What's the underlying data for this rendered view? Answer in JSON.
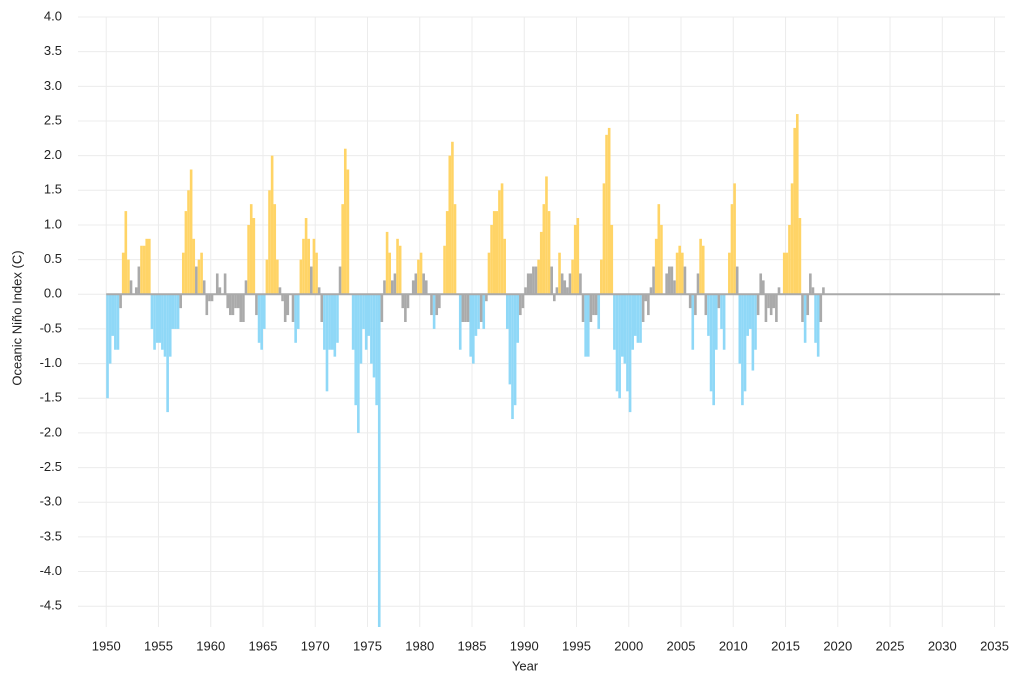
{
  "chart_data": {
    "type": "bar",
    "x_label": "Year",
    "y_label": "Oceanic Niño Index (C)",
    "xlim": [
      1947.3,
      2036
    ],
    "ylim": [
      -4.8,
      4.0
    ],
    "xticks": [
      1950,
      1955,
      1960,
      1965,
      1970,
      1975,
      1980,
      1985,
      1990,
      1995,
      2000,
      2005,
      2010,
      2015,
      2020,
      2025,
      2030,
      2035
    ],
    "yticks": [
      {
        "value": 4,
        "label": "4.0"
      },
      3.5,
      {
        "value": 3,
        "label": "3.0"
      },
      2.5,
      {
        "value": 2,
        "label": "2.0"
      },
      1.5,
      {
        "value": 1,
        "label": "1.0"
      },
      0.5,
      {
        "value": 0,
        "label": "0.0"
      },
      -0.5,
      {
        "value": -1,
        "label": "-1.0"
      },
      -1.5,
      {
        "value": -2,
        "label": "-2.0"
      },
      -2.5,
      {
        "value": -3,
        "label": "-3.0"
      },
      -3.5,
      {
        "value": -4,
        "label": "-4.0"
      },
      -4.5
    ],
    "grid": true,
    "colors": {
      "warm": "#ffd466",
      "cool": "#8fd8f7",
      "neutral": "#aaaaaa",
      "zero_line": "#aaaaaa"
    },
    "color_threshold": 0.5,
    "x": [
      1950,
      1950.25,
      1950.5,
      1950.75,
      1951,
      1951.25,
      1951.5,
      1951.75,
      1952,
      1952.25,
      1952.5,
      1952.75,
      1953,
      1953.25,
      1953.5,
      1953.75,
      1954,
      1954.25,
      1954.5,
      1954.75,
      1955,
      1955.25,
      1955.5,
      1955.75,
      1956,
      1956.25,
      1956.5,
      1956.75,
      1957,
      1957.25,
      1957.5,
      1957.75,
      1958,
      1958.25,
      1958.5,
      1958.75,
      1959,
      1959.25,
      1959.5,
      1959.75,
      1960,
      1960.25,
      1960.5,
      1960.75,
      1961,
      1961.25,
      1961.5,
      1961.75,
      1962,
      1962.25,
      1962.5,
      1962.75,
      1963,
      1963.25,
      1963.5,
      1963.75,
      1964,
      1964.25,
      1964.5,
      1964.75,
      1965,
      1965.25,
      1965.5,
      1965.75,
      1966,
      1966.25,
      1966.5,
      1966.75,
      1967,
      1967.25,
      1967.5,
      1967.75,
      1968,
      1968.25,
      1968.5,
      1968.75,
      1969,
      1969.25,
      1969.5,
      1969.75,
      1970,
      1970.25,
      1970.5,
      1970.75,
      1971,
      1971.25,
      1971.5,
      1971.75,
      1972,
      1972.25,
      1972.5,
      1972.75,
      1973,
      1973.25,
      1973.5,
      1973.75,
      1974,
      1974.25,
      1974.5,
      1974.75,
      1975,
      1975.25,
      1975.5,
      1975.75,
      1976,
      1976.25,
      1976.5,
      1976.75,
      1977,
      1977.25,
      1977.5,
      1977.75,
      1978,
      1978.25,
      1978.5,
      1978.75,
      1979,
      1979.25,
      1979.5,
      1979.75,
      1980,
      1980.25,
      1980.5,
      1980.75,
      1981,
      1981.25,
      1981.5,
      1981.75,
      1982,
      1982.25,
      1982.5,
      1982.75,
      1983,
      1983.25,
      1983.5,
      1983.75,
      1984,
      1984.25,
      1984.5,
      1984.75,
      1985,
      1985.25,
      1985.5,
      1985.75,
      1986,
      1986.25,
      1986.5,
      1986.75,
      1987,
      1987.25,
      1987.5,
      1987.75,
      1988,
      1988.25,
      1988.5,
      1988.75,
      1989,
      1989.25,
      1989.5,
      1989.75,
      1990,
      1990.25,
      1990.5,
      1990.75,
      1991,
      1991.25,
      1991.5,
      1991.75,
      1992,
      1992.25,
      1992.5,
      1992.75,
      1993,
      1993.25,
      1993.5,
      1993.75,
      1994,
      1994.25,
      1994.5,
      1994.75,
      1995,
      1995.25,
      1995.5,
      1995.75,
      1996,
      1996.25,
      1996.5,
      1996.75,
      1997,
      1997.25,
      1997.5,
      1997.75,
      1998,
      1998.25,
      1998.5,
      1998.75,
      1999,
      1999.25,
      1999.5,
      1999.75,
      2000,
      2000.25,
      2000.5,
      2000.75,
      2001,
      2001.25,
      2001.5,
      2001.75,
      2002,
      2002.25,
      2002.5,
      2002.75,
      2003,
      2003.25,
      2003.5,
      2003.75,
      2004,
      2004.25,
      2004.5,
      2004.75,
      2005,
      2005.25,
      2005.5,
      2005.75,
      2006,
      2006.25,
      2006.5,
      2006.75,
      2007,
      2007.25,
      2007.5,
      2007.75,
      2008,
      2008.25,
      2008.5,
      2008.75,
      2009,
      2009.25,
      2009.5,
      2009.75,
      2010,
      2010.25,
      2010.5,
      2010.75,
      2011,
      2011.25,
      2011.5,
      2011.75,
      2012,
      2012.25,
      2012.5,
      2012.75,
      2013,
      2013.25,
      2013.5,
      2013.75,
      2014,
      2014.25,
      2014.5,
      2014.75,
      2015,
      2015.25,
      2015.5,
      2015.75,
      2016,
      2016.25,
      2016.5,
      2016.75,
      2017,
      2017.25,
      2017.5,
      2017.75,
      2018,
      2018.25,
      2018.5
    ],
    "values": [
      -1.5,
      -1.0,
      -0.6,
      -0.8,
      -0.8,
      -0.2,
      0.6,
      1.2,
      0.5,
      0.2,
      0.0,
      0.1,
      0.4,
      0.7,
      0.7,
      0.8,
      0.8,
      -0.5,
      -0.8,
      -0.7,
      -0.7,
      -0.8,
      -0.9,
      -1.7,
      -0.9,
      -0.5,
      -0.5,
      -0.5,
      -0.2,
      0.6,
      1.2,
      1.5,
      1.8,
      0.8,
      0.4,
      0.5,
      0.6,
      0.2,
      -0.3,
      -0.1,
      -0.1,
      0.0,
      0.3,
      0.1,
      0.0,
      0.3,
      -0.2,
      -0.3,
      -0.3,
      -0.2,
      -0.2,
      -0.4,
      -0.4,
      0.2,
      1.0,
      1.3,
      1.1,
      -0.3,
      -0.7,
      -0.8,
      -0.5,
      0.5,
      1.5,
      2.0,
      1.3,
      0.5,
      0.1,
      -0.1,
      -0.4,
      -0.3,
      0.0,
      -0.4,
      -0.7,
      -0.5,
      0.5,
      0.8,
      1.1,
      0.8,
      0.4,
      0.8,
      0.6,
      0.1,
      -0.4,
      -0.8,
      -1.4,
      -0.8,
      -0.8,
      -0.9,
      -0.7,
      0.4,
      1.3,
      2.1,
      1.8,
      0.0,
      -0.8,
      -1.6,
      -2.0,
      -1.0,
      -0.5,
      -0.8,
      -0.6,
      -1.0,
      -1.2,
      -1.6,
      -4.8,
      -0.4,
      0.2,
      0.9,
      0.6,
      0.2,
      0.3,
      0.8,
      0.7,
      -0.2,
      -0.4,
      -0.2,
      0.0,
      0.2,
      0.3,
      0.5,
      0.6,
      0.3,
      0.2,
      0.0,
      -0.3,
      -0.5,
      -0.3,
      -0.2,
      0.0,
      0.7,
      1.2,
      2.0,
      2.2,
      1.3,
      0.0,
      -0.8,
      -0.4,
      -0.4,
      -0.4,
      -0.9,
      -1.0,
      -0.6,
      -0.5,
      -0.4,
      -0.5,
      -0.1,
      0.6,
      1.0,
      1.2,
      1.2,
      1.5,
      1.6,
      0.8,
      -0.5,
      -1.3,
      -1.8,
      -1.6,
      -0.7,
      -0.3,
      -0.2,
      0.1,
      0.3,
      0.3,
      0.4,
      0.4,
      0.5,
      0.9,
      1.3,
      1.7,
      1.2,
      0.4,
      -0.1,
      0.1,
      0.6,
      0.3,
      0.2,
      0.1,
      0.3,
      0.5,
      1.0,
      1.1,
      0.3,
      -0.4,
      -0.9,
      -0.9,
      -0.4,
      -0.3,
      -0.3,
      -0.5,
      0.5,
      1.6,
      2.3,
      2.4,
      1.0,
      -0.8,
      -1.4,
      -1.5,
      -0.9,
      -1.0,
      -1.4,
      -1.7,
      -0.8,
      -0.6,
      -0.7,
      -0.7,
      -0.4,
      -0.1,
      -0.3,
      0.1,
      0.4,
      0.8,
      1.3,
      1.0,
      0.0,
      0.3,
      0.4,
      0.4,
      0.2,
      0.6,
      0.7,
      0.6,
      0.4,
      0.0,
      -0.2,
      -0.8,
      -0.3,
      0.3,
      0.8,
      0.7,
      -0.3,
      -0.6,
      -1.4,
      -1.6,
      -0.8,
      -0.2,
      -0.5,
      -0.8,
      0.0,
      0.6,
      1.3,
      1.6,
      0.4,
      -1.0,
      -1.6,
      -1.4,
      -0.6,
      -0.5,
      -1.1,
      -0.8,
      -0.3,
      0.3,
      0.2,
      -0.4,
      -0.2,
      -0.3,
      -0.2,
      -0.4,
      0.1,
      0.0,
      0.6,
      0.6,
      1.0,
      1.6,
      2.4,
      2.6,
      1.1,
      -0.4,
      -0.7,
      -0.3,
      0.3,
      0.1,
      -0.7,
      -0.9,
      -0.4,
      0.1
    ]
  }
}
